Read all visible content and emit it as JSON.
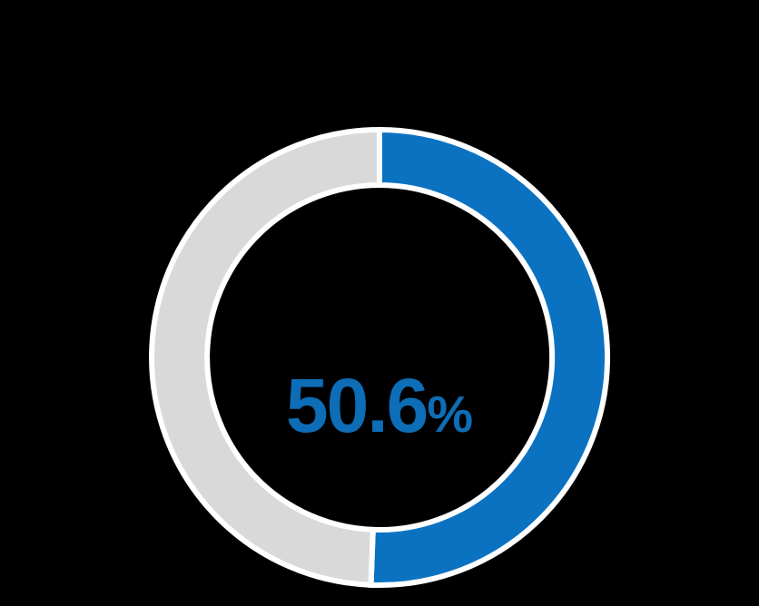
{
  "chart_data": {
    "type": "pie",
    "variant": "donut",
    "title": "",
    "series": [
      {
        "name": "value",
        "value": 50.6,
        "color": "#0b72c1"
      },
      {
        "name": "remainder",
        "value": 49.4,
        "color": "#d9d9d9"
      }
    ],
    "center_label": {
      "value": "50.6",
      "unit": "%"
    },
    "start_angle_deg": -90,
    "direction": "clockwise",
    "geometry": {
      "center_x": 418,
      "center_y": 394,
      "outer_radius": 251,
      "inner_radius": 190,
      "border_width": 6
    },
    "border_color": "#ffffff",
    "label_color": "#0d6db6",
    "background": "#000000",
    "legend": "none",
    "grid": "off"
  }
}
